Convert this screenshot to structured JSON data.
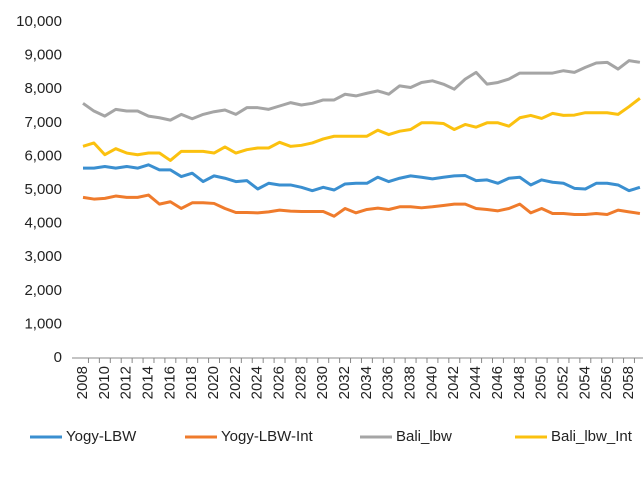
{
  "chart_data": {
    "type": "line",
    "categories": [
      "2008",
      null,
      "2010",
      null,
      "2012",
      null,
      "2014",
      null,
      "2016",
      null,
      "2018",
      null,
      "2020",
      null,
      "2022",
      null,
      "2024",
      null,
      "2026",
      null,
      "2028",
      null,
      "2030",
      null,
      "2032",
      null,
      "2034",
      null,
      "2036",
      null,
      "2038",
      null,
      "2040",
      null,
      "2042",
      null,
      "2044",
      null,
      "2046",
      null,
      "2048",
      null,
      "2050",
      null,
      "2052",
      null,
      "2054",
      null,
      "2056",
      null,
      "2058",
      null
    ],
    "series": [
      {
        "name": "Yogy-LBW",
        "color": "#3a8fd0",
        "values": [
          5650,
          5650,
          5700,
          5650,
          5700,
          5650,
          5750,
          5600,
          5600,
          5400,
          5500,
          5250,
          5420,
          5350,
          5250,
          5280,
          5030,
          5200,
          5150,
          5150,
          5080,
          4980,
          5080,
          5000,
          5180,
          5200,
          5200,
          5380,
          5250,
          5350,
          5420,
          5380,
          5330,
          5380,
          5420,
          5430,
          5280,
          5300,
          5200,
          5350,
          5380,
          5150,
          5300,
          5230,
          5200,
          5050,
          5030,
          5200,
          5200,
          5150,
          4980,
          5080
        ]
      },
      {
        "name": "Yogy-LBW-Int",
        "color": "#ef7b2c",
        "values": [
          4780,
          4730,
          4750,
          4820,
          4780,
          4780,
          4850,
          4580,
          4650,
          4450,
          4620,
          4620,
          4600,
          4450,
          4330,
          4330,
          4320,
          4350,
          4400,
          4370,
          4360,
          4360,
          4360,
          4220,
          4450,
          4320,
          4420,
          4460,
          4420,
          4500,
          4500,
          4470,
          4500,
          4540,
          4580,
          4580,
          4450,
          4420,
          4380,
          4450,
          4580,
          4320,
          4450,
          4300,
          4300,
          4270,
          4270,
          4300,
          4270,
          4400,
          4350,
          4300
        ]
      },
      {
        "name": "Bali_lbw",
        "color": "#a5a5a5",
        "values": [
          7580,
          7350,
          7200,
          7400,
          7350,
          7350,
          7200,
          7150,
          7080,
          7250,
          7120,
          7250,
          7330,
          7380,
          7250,
          7450,
          7450,
          7400,
          7500,
          7600,
          7530,
          7580,
          7680,
          7680,
          7850,
          7800,
          7880,
          7950,
          7850,
          8100,
          8050,
          8200,
          8250,
          8150,
          8000,
          8300,
          8500,
          8150,
          8200,
          8300,
          8480,
          8480,
          8480,
          8480,
          8550,
          8500,
          8650,
          8780,
          8800,
          8600,
          8850,
          8800
        ]
      },
      {
        "name": "Bali_lbw_Int",
        "color": "#fbc10f",
        "values": [
          6300,
          6400,
          6050,
          6230,
          6100,
          6050,
          6100,
          6100,
          5880,
          6150,
          6150,
          6150,
          6100,
          6280,
          6100,
          6200,
          6250,
          6250,
          6420,
          6300,
          6330,
          6400,
          6520,
          6600,
          6600,
          6600,
          6600,
          6780,
          6650,
          6750,
          6800,
          7000,
          7000,
          6980,
          6800,
          6950,
          6870,
          7000,
          7000,
          6900,
          7150,
          7220,
          7130,
          7280,
          7220,
          7230,
          7300,
          7300,
          7300,
          7250,
          7480,
          7730
        ]
      }
    ],
    "ylim": [
      0,
      10000
    ],
    "yticks": [
      0,
      {
        "value": 1000,
        "label": "1,000"
      },
      {
        "value": 2000,
        "label": "2,000"
      },
      {
        "value": 3000,
        "label": "3,000"
      },
      {
        "value": 4000,
        "label": "4,000"
      },
      {
        "value": 5000,
        "label": "5,000"
      },
      {
        "value": 6000,
        "label": "6,000"
      },
      {
        "value": 7000,
        "label": "7,000"
      },
      {
        "value": 8000,
        "label": "8,000"
      },
      {
        "value": 9000,
        "label": "9,000"
      },
      {
        "value": 10000,
        "label": "10,000"
      }
    ],
    "grid": false,
    "legend": "bottom"
  }
}
